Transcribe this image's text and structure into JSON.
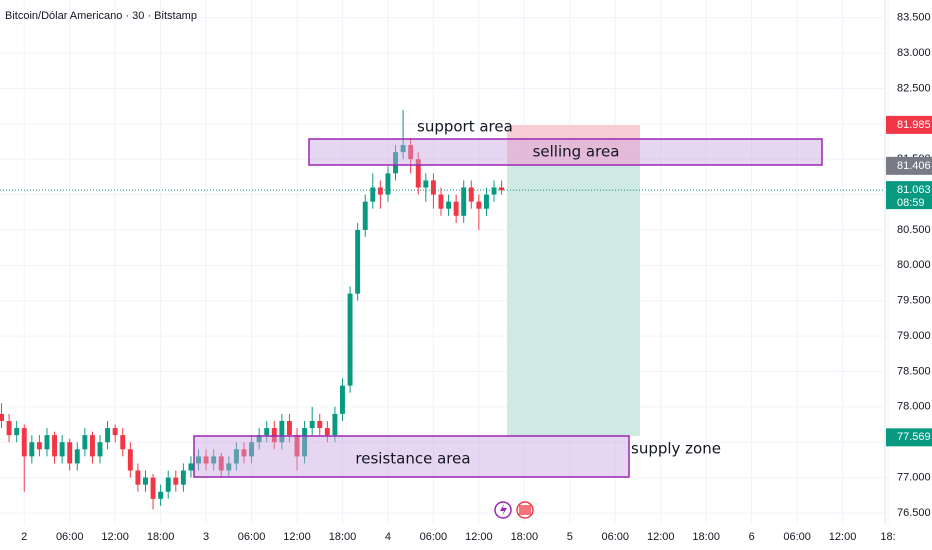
{
  "chart_data": {
    "type": "candlestick",
    "title": "Bitcoin/Dólar Americano · 30 · Bitstamp",
    "x": [
      -3,
      -2,
      -1,
      0,
      1,
      2,
      3,
      4,
      5,
      6,
      7,
      8,
      9,
      10,
      11,
      12,
      13,
      14,
      15,
      16,
      17,
      18,
      19,
      20,
      21,
      22,
      23,
      24,
      25,
      26,
      27,
      28,
      29,
      30,
      31,
      32,
      33,
      34,
      35,
      36,
      37,
      38,
      39,
      40,
      41,
      42,
      43,
      44,
      45,
      46,
      47,
      48,
      49,
      50,
      51,
      52,
      53,
      54,
      55,
      56,
      57,
      58,
      59,
      60,
      61,
      62,
      63
    ],
    "open": [
      77.9,
      77.8,
      77.6,
      77.7,
      77.3,
      77.5,
      77.4,
      77.6,
      77.3,
      77.5,
      77.2,
      77.4,
      77.6,
      77.3,
      77.5,
      77.7,
      77.6,
      77.4,
      77.1,
      76.9,
      77.0,
      76.7,
      76.8,
      77.0,
      76.9,
      77.1,
      77.2,
      77.3,
      77.2,
      77.3,
      77.1,
      77.2,
      77.4,
      77.3,
      77.5,
      77.6,
      77.7,
      77.5,
      77.8,
      77.6,
      77.3,
      77.7,
      77.8,
      77.7,
      77.6,
      77.9,
      78.3,
      79.6,
      80.5,
      80.9,
      81.1,
      81.0,
      81.3,
      81.6,
      81.7,
      81.5,
      81.1,
      81.2,
      81.0,
      80.8,
      80.9,
      80.7,
      81.1,
      80.9,
      80.8,
      81.0,
      81.1
    ],
    "high": [
      78.05,
      77.9,
      77.8,
      77.75,
      77.6,
      77.6,
      77.7,
      77.65,
      77.6,
      77.55,
      77.5,
      77.7,
      77.65,
      77.6,
      77.8,
      77.75,
      77.7,
      77.5,
      77.2,
      77.1,
      77.05,
      76.9,
      77.1,
      77.1,
      77.2,
      77.3,
      77.4,
      77.4,
      77.4,
      77.35,
      77.3,
      77.5,
      77.5,
      77.6,
      77.7,
      77.8,
      77.8,
      77.9,
      77.9,
      77.7,
      77.8,
      78.0,
      77.9,
      77.8,
      78.0,
      78.4,
      79.7,
      80.6,
      81.0,
      81.3,
      81.2,
      81.4,
      81.7,
      82.2,
      81.8,
      81.6,
      81.3,
      81.3,
      81.1,
      81.0,
      81.0,
      81.2,
      81.2,
      81.0,
      81.1,
      81.2,
      81.2
    ],
    "low": [
      77.7,
      77.5,
      77.5,
      76.8,
      77.2,
      77.3,
      77.3,
      77.2,
      77.2,
      77.1,
      77.1,
      77.3,
      77.2,
      77.2,
      77.4,
      77.5,
      77.3,
      77.0,
      76.8,
      76.8,
      76.55,
      76.6,
      76.7,
      76.8,
      76.8,
      77.0,
      77.1,
      77.1,
      77.1,
      77.0,
      77.0,
      77.1,
      77.2,
      77.2,
      77.4,
      77.5,
      77.4,
      77.4,
      77.5,
      77.1,
      77.2,
      77.6,
      77.6,
      77.5,
      77.5,
      77.8,
      78.2,
      79.5,
      80.4,
      80.8,
      80.8,
      80.9,
      81.2,
      81.5,
      81.3,
      81.0,
      80.9,
      80.8,
      80.7,
      80.7,
      80.6,
      80.6,
      80.8,
      80.5,
      80.7,
      80.9,
      81.0
    ],
    "close": [
      77.8,
      77.6,
      77.7,
      77.3,
      77.5,
      77.4,
      77.6,
      77.3,
      77.5,
      77.2,
      77.4,
      77.6,
      77.3,
      77.5,
      77.7,
      77.6,
      77.4,
      77.1,
      76.9,
      77.0,
      76.7,
      76.8,
      77.0,
      76.9,
      77.1,
      77.2,
      77.3,
      77.2,
      77.3,
      77.1,
      77.2,
      77.4,
      77.3,
      77.5,
      77.6,
      77.7,
      77.5,
      77.8,
      77.6,
      77.3,
      77.7,
      77.8,
      77.7,
      77.6,
      77.9,
      78.3,
      79.6,
      80.5,
      80.9,
      81.1,
      81.0,
      81.3,
      81.6,
      81.7,
      81.5,
      81.1,
      81.2,
      81.0,
      80.8,
      80.9,
      80.7,
      81.1,
      80.9,
      80.8,
      81.0,
      81.1,
      81.06
    ],
    "up_color": "#089981",
    "down_color": "#f23645",
    "xlim": [
      -3.2,
      113.6
    ],
    "xticks": [
      {
        "value": 0,
        "label": "2"
      },
      {
        "value": 6,
        "label": "06:00"
      },
      {
        "value": 12,
        "label": "12:00"
      },
      {
        "value": 18,
        "label": "18:00"
      },
      {
        "value": 24,
        "label": "3"
      },
      {
        "value": 30,
        "label": "06:00"
      },
      {
        "value": 36,
        "label": "12:00"
      },
      {
        "value": 42,
        "label": "18:00"
      },
      {
        "value": 48,
        "label": "4"
      },
      {
        "value": 54,
        "label": "06:00"
      },
      {
        "value": 60,
        "label": "12:00"
      },
      {
        "value": 66,
        "label": "18:00"
      },
      {
        "value": 72,
        "label": "5"
      },
      {
        "value": 78,
        "label": "06:00"
      },
      {
        "value": 84,
        "label": "12:00"
      },
      {
        "value": 90,
        "label": "18:00"
      },
      {
        "value": 96,
        "label": "6"
      },
      {
        "value": 102,
        "label": "06:00"
      },
      {
        "value": 108,
        "label": "12:00"
      },
      {
        "value": 114,
        "label": "18:"
      }
    ],
    "ylim": [
      76.33,
      83.75
    ],
    "yticks": [
      {
        "value": 76.5,
        "label": "76.500"
      },
      {
        "value": 77,
        "label": "77.000"
      },
      {
        "value": 77.5,
        "label": "77.500"
      },
      {
        "value": 78,
        "label": "78.000"
      },
      {
        "value": 78.5,
        "label": "78.500"
      },
      {
        "value": 79,
        "label": "79.000"
      },
      {
        "value": 79.5,
        "label": "79.500"
      },
      {
        "value": 80,
        "label": "80.000"
      },
      {
        "value": 80.5,
        "label": "80.500"
      },
      {
        "value": 81,
        "label": "81.000"
      },
      {
        "value": 81.5,
        "label": "81.500"
      },
      {
        "value": 82,
        "label": "82.000"
      },
      {
        "value": 82.5,
        "label": "82.500"
      },
      {
        "value": 83,
        "label": "83.000"
      },
      {
        "value": 83.5,
        "label": "83.500"
      }
    ],
    "grid": true,
    "price_labels": [
      {
        "value": 81.985,
        "label": "81.985",
        "color": "#f23645"
      },
      {
        "value": 81.406,
        "label": "81.406",
        "color": "#787b86"
      },
      {
        "value": 81.063,
        "label": "81.063",
        "color": "#089981",
        "countdown": "08:59"
      },
      {
        "value": 77.569,
        "label": "77.569",
        "color": "#089981"
      }
    ],
    "annotations": {
      "support": "support area",
      "selling": "selling area",
      "resistance": "resistance area",
      "supply": "supply zone"
    }
  }
}
